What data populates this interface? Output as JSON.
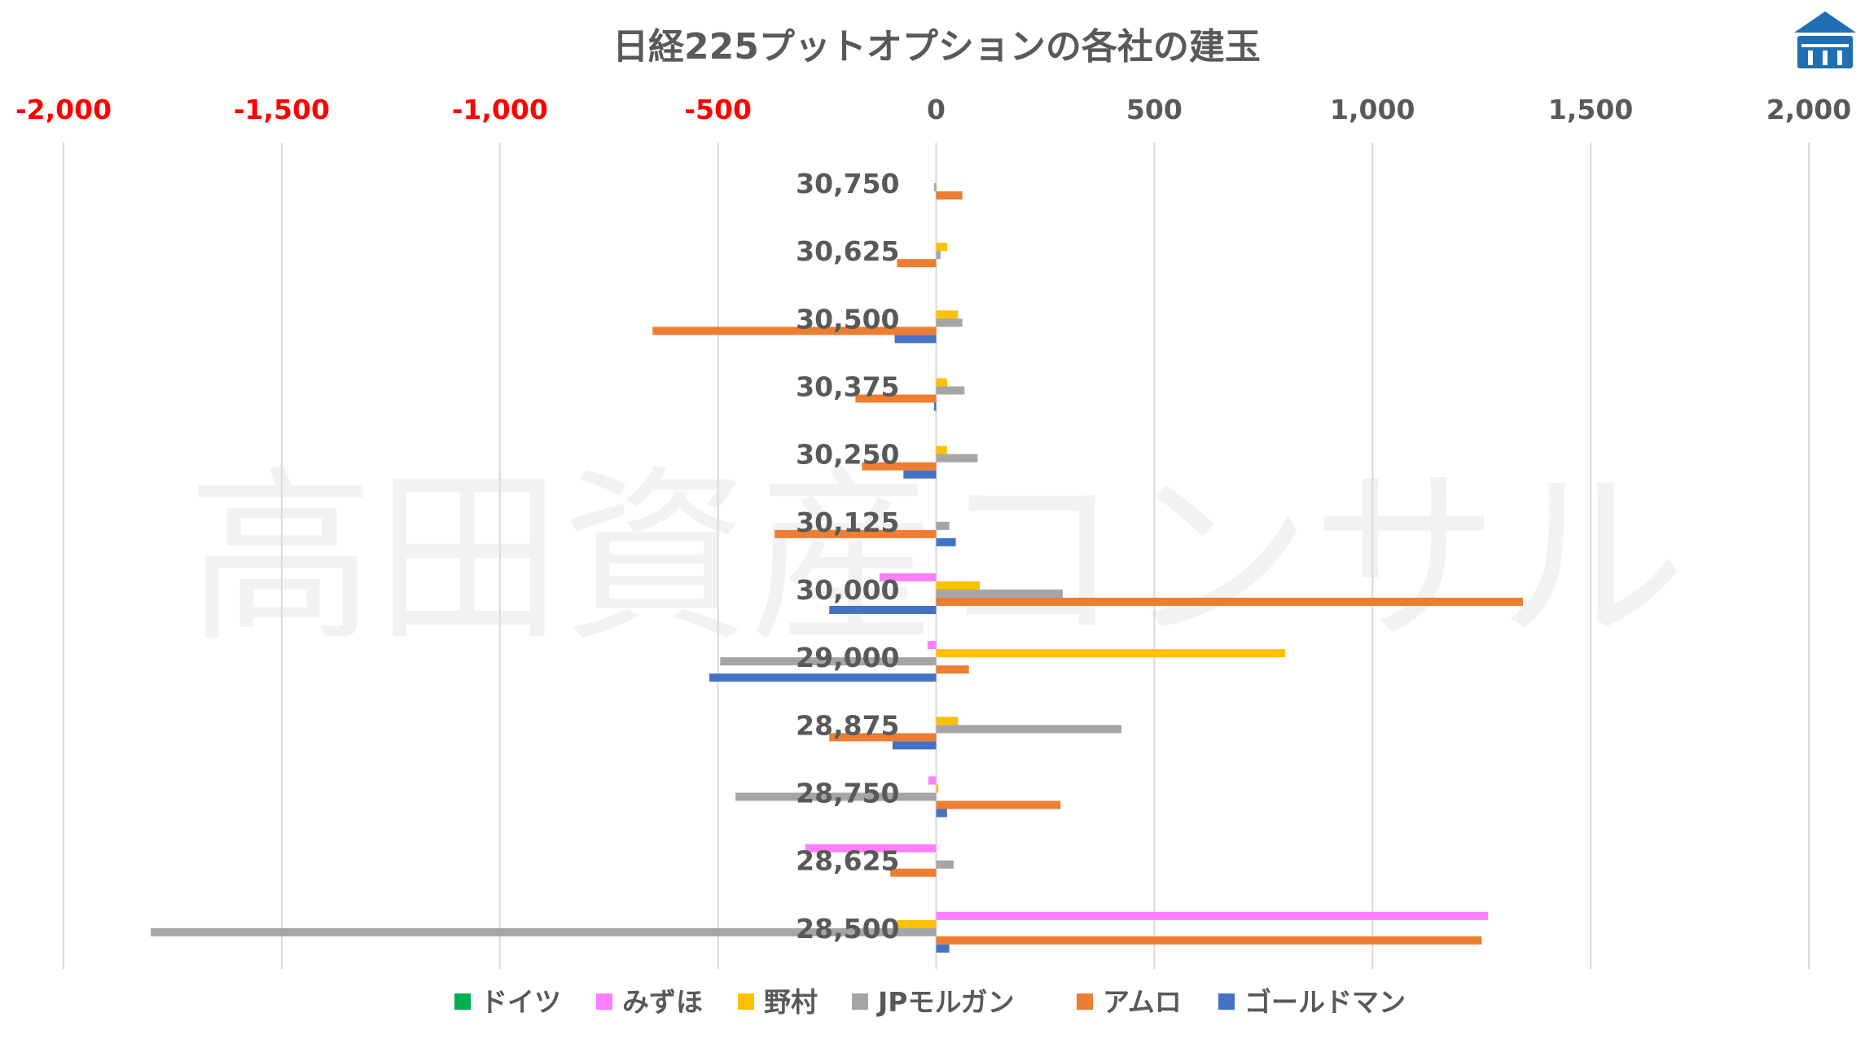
{
  "chart_data": {
    "type": "bar",
    "orientation": "horizontal",
    "title": "日経225プットオプションの各社の建玉",
    "watermark": "高田資産コンサル",
    "xlim": [
      -2000,
      2000
    ],
    "x_ticks": [
      {
        "value": -2000,
        "label": "-2,000"
      },
      {
        "value": -1500,
        "label": "-1,500"
      },
      {
        "value": -1000,
        "label": "-1,000"
      },
      {
        "value": -500,
        "label": "-500"
      },
      {
        "value": 0,
        "label": "0"
      },
      {
        "value": 500,
        "label": "500"
      },
      {
        "value": 1000,
        "label": "1,000"
      },
      {
        "value": 1500,
        "label": "1,500"
      },
      {
        "value": 2000,
        "label": "2,000"
      }
    ],
    "negative_tick_color": "#ff0000",
    "grid": true,
    "legend_position": "bottom",
    "categories": [
      "30,750",
      "30,625",
      "30,500",
      "30,375",
      "30,250",
      "30,125",
      "30,000",
      "29,000",
      "28,875",
      "28,750",
      "28,625",
      "28,500"
    ],
    "series": [
      {
        "name": "ドイツ",
        "color": "#00b050",
        "values": [
          0,
          0,
          0,
          0,
          0,
          0,
          0,
          0,
          0,
          0,
          0,
          0
        ]
      },
      {
        "name": "みずほ",
        "color": "#ff80ff",
        "values": [
          0,
          0,
          0,
          0,
          0,
          0,
          -130,
          -20,
          0,
          -18,
          -300,
          1265
        ]
      },
      {
        "name": "野村",
        "color": "#ffc000",
        "values": [
          0,
          25,
          50,
          25,
          25,
          0,
          100,
          800,
          50,
          5,
          0,
          -90
        ]
      },
      {
        "name": "JPモルガン",
        "color": "#a5a5a5",
        "values": [
          -5,
          10,
          60,
          65,
          95,
          30,
          290,
          -495,
          425,
          -460,
          40,
          -1800
        ]
      },
      {
        "name": "アムロ",
        "color": "#ed7d31",
        "values": [
          60,
          -90,
          -650,
          -185,
          -170,
          -370,
          1345,
          75,
          -245,
          285,
          -105,
          1250
        ]
      },
      {
        "name": "ゴールドマン",
        "color": "#4472c4",
        "values": [
          0,
          0,
          -95,
          -5,
          -75,
          45,
          -245,
          -520,
          -100,
          25,
          0,
          30
        ]
      }
    ]
  },
  "logo": {
    "name": "building-logo-icon",
    "color": "#1f6fb2"
  }
}
